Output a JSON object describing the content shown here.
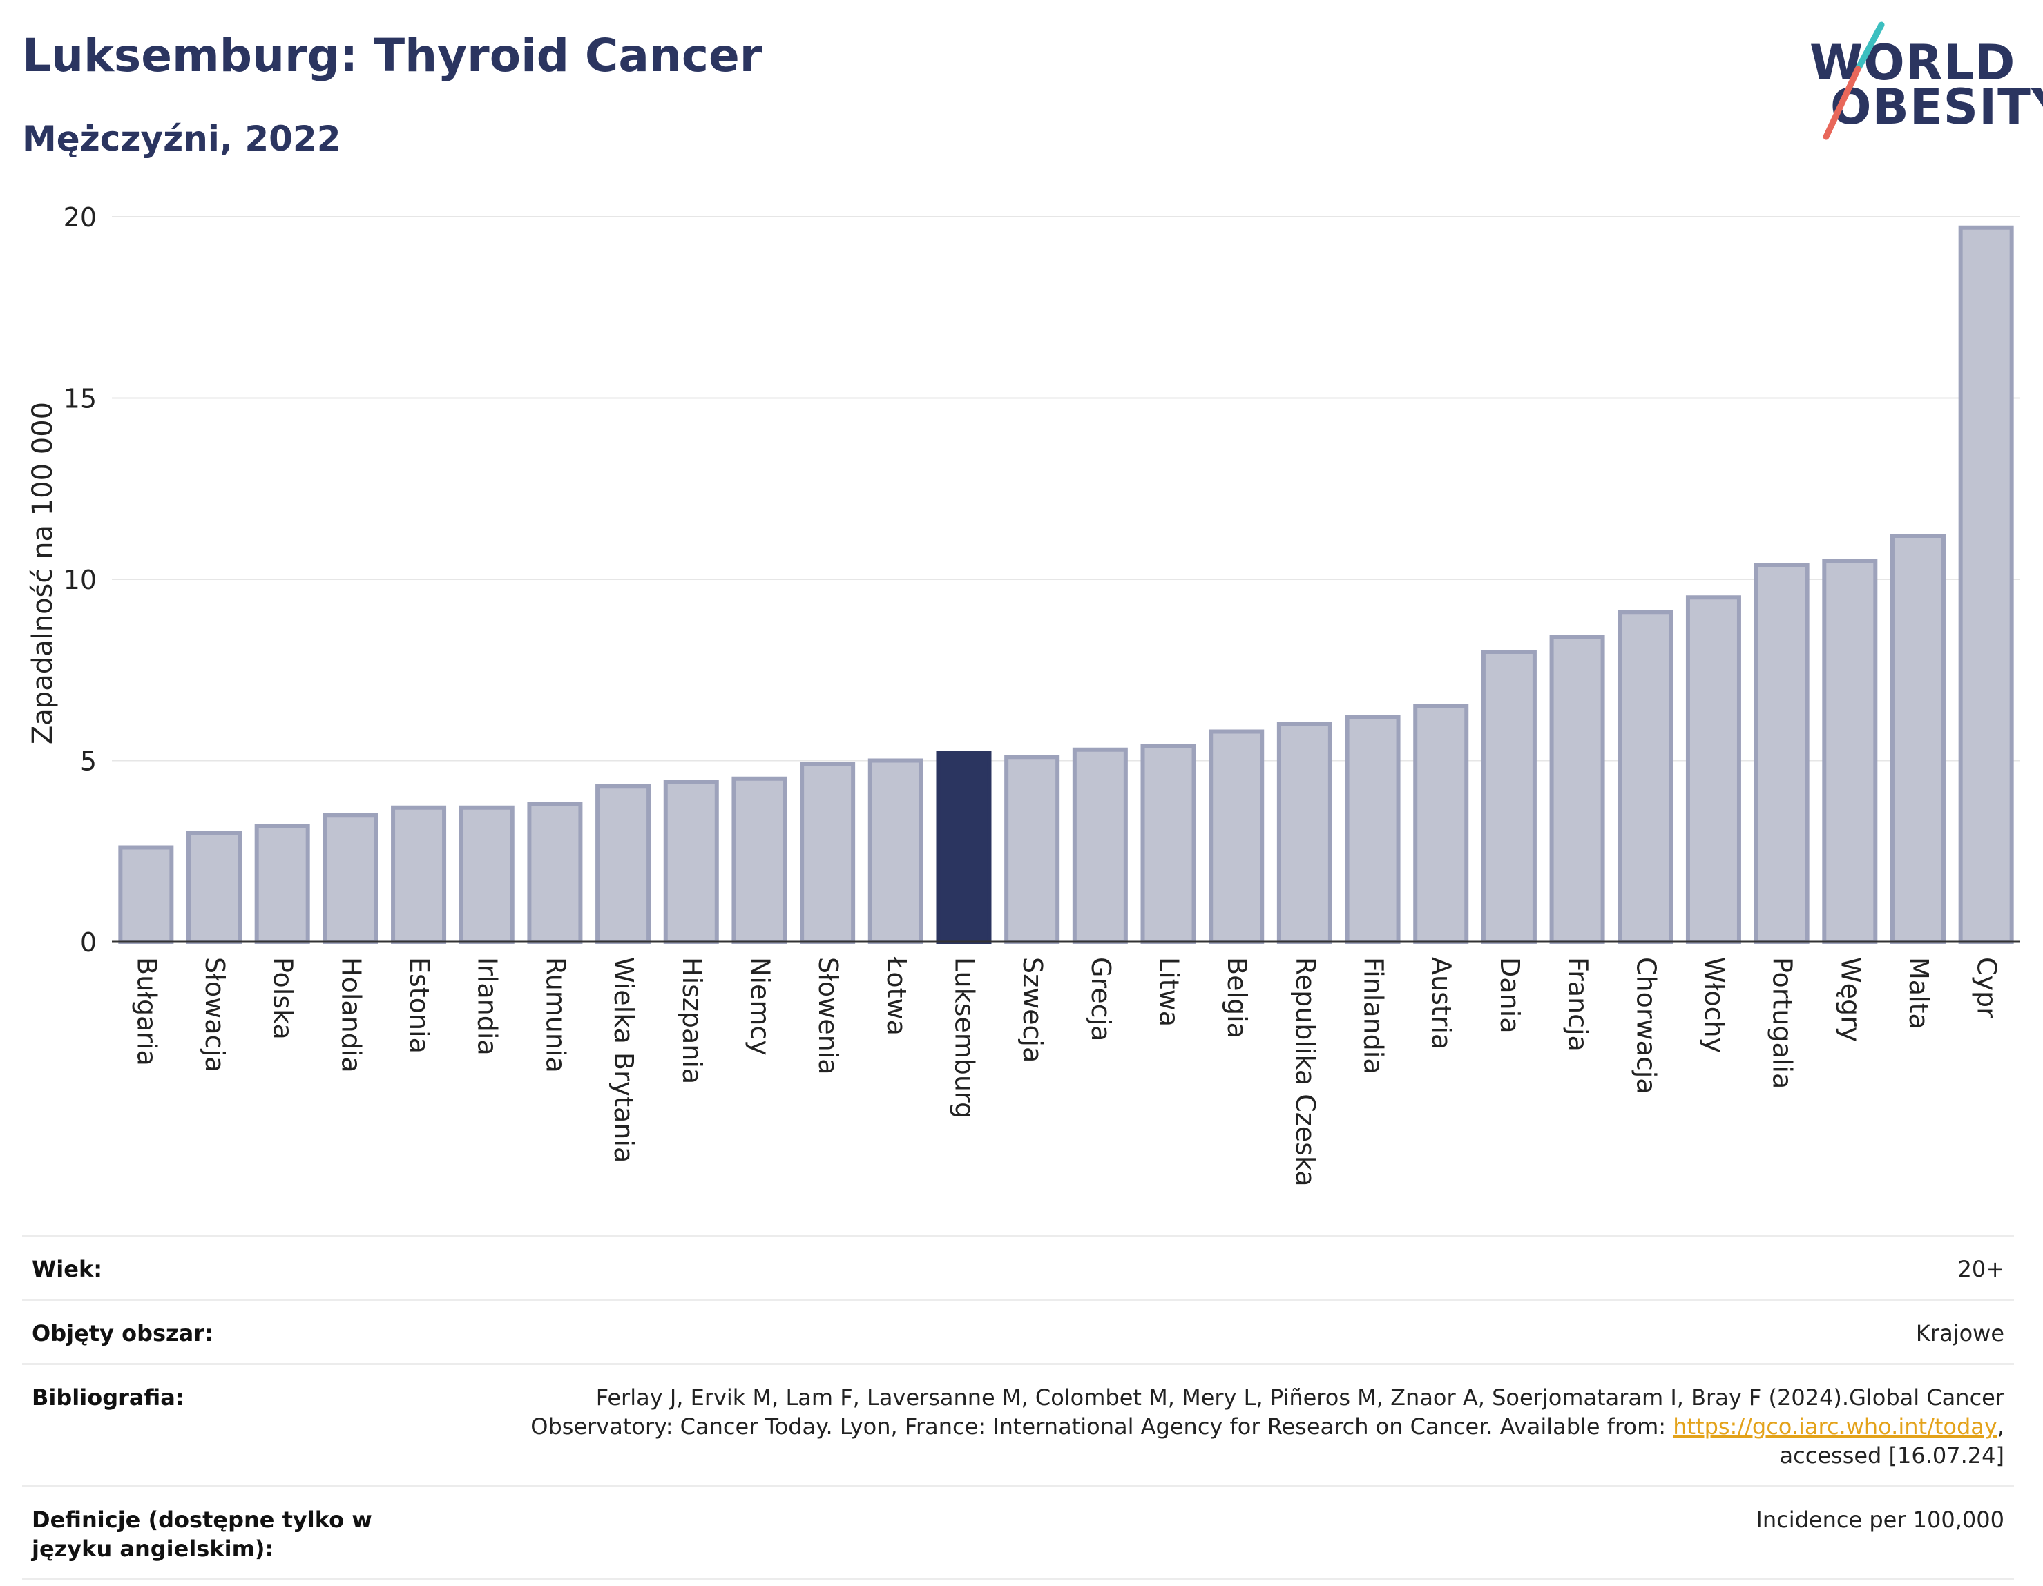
{
  "header": {
    "title": "Luksemburg: Thyroid Cancer",
    "subtitle": "Mężczyźni, 2022"
  },
  "logo": {
    "line1": "WORLD",
    "line2": "OBESITY",
    "colors": {
      "text": "#2b3560",
      "slash_teal": "#3cbfc0",
      "slash_coral": "#e8675a"
    }
  },
  "chart_data": {
    "type": "bar",
    "ylabel": "Zapadalność na 100 000",
    "xlabel": "",
    "ylim": [
      0,
      20
    ],
    "yticks": [
      0,
      5,
      10,
      15,
      20
    ],
    "grid": true,
    "highlight": "Luksemburg",
    "colors": {
      "bar": "#c0c3d1",
      "bar_edge": "#9da2bb",
      "highlight": "#2b3560"
    },
    "categories": [
      "Bułgaria",
      "Słowacja",
      "Polska",
      "Holandia",
      "Estonia",
      "Irlandia",
      "Rumunia",
      "Wielka Brytania",
      "Hiszpania",
      "Niemcy",
      "Słowenia",
      "Łotwa",
      "Luksemburg",
      "Szwecja",
      "Grecja",
      "Litwa",
      "Belgia",
      "Republika Czeska",
      "Finlandia",
      "Austria",
      "Dania",
      "Francja",
      "Chorwacja",
      "Włochy",
      "Portugalia",
      "Węgry",
      "Malta",
      "Cypr"
    ],
    "values": [
      2.6,
      3.0,
      3.2,
      3.5,
      3.7,
      3.7,
      3.8,
      4.3,
      4.4,
      4.5,
      4.9,
      5.0,
      5.2,
      5.1,
      5.3,
      5.4,
      5.8,
      6.0,
      6.2,
      6.5,
      8.0,
      8.4,
      9.1,
      9.5,
      10.4,
      10.5,
      11.2,
      19.7
    ]
  },
  "info_table": [
    {
      "label": "Wiek:",
      "value": "20+"
    },
    {
      "label": "Objęty obszar:",
      "value": "Krajowe"
    },
    {
      "label": "Bibliografia:",
      "value_pre": "Ferlay J, Ervik M, Lam F, Laversanne M, Colombet M, Mery L, Piñeros M, Znaor A, Soerjomataram I, Bray F (2024).Global Cancer Observatory: Cancer Today. Lyon, France: International Agency for Research on Cancer. Available from: ",
      "link": "https://gco.iarc.who.int/today",
      "value_post": ", accessed [16.07.24]"
    },
    {
      "label": "Definicje (dostępne tylko w języku angielskim):",
      "value": "Incidence per 100,000"
    }
  ]
}
